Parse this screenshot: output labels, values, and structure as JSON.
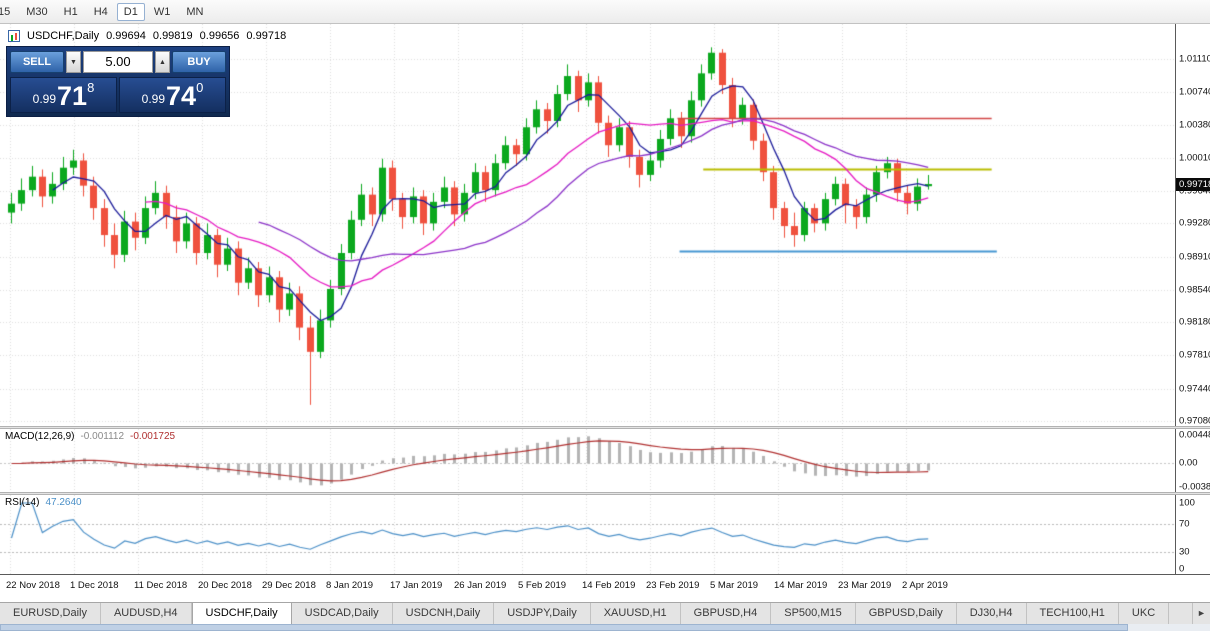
{
  "toolbar": {
    "buttons": [
      "15",
      "M30",
      "H1",
      "H4",
      "D1",
      "W1",
      "MN"
    ],
    "selected": "D1"
  },
  "icons": {
    "spinner_down": "▼",
    "spinner_up": "▲",
    "tab_scroll_right": "►"
  },
  "trade": {
    "sell_label": "SELL",
    "buy_label": "BUY",
    "volume": "5.00",
    "sell_price_small": "0.99",
    "sell_price_big": "71",
    "sell_price_sup": "8",
    "buy_price_small": "0.99",
    "buy_price_big": "74",
    "buy_price_sup": "0"
  },
  "tabbar": {
    "tabs": [
      "EURUSD,Daily",
      "AUDUSD,H4",
      "USDCHF,Daily",
      "USDCAD,Daily",
      "USDCNH,Daily",
      "USDJPY,Daily",
      "XAUUSD,H1",
      "GBPUSD,H4",
      "SP500,M15",
      "GBPUSD,Daily",
      "DJ30,H4",
      "TECH100,H1",
      "UKC"
    ],
    "active": "USDCHF,Daily"
  },
  "chart_data": {
    "type": "candlestick",
    "symbol_label": "USDCHF,Daily",
    "ohlc_text": {
      "open": "0.99694",
      "high": "0.99819",
      "low": "0.99656",
      "close": "0.99718"
    },
    "current_price_tag": "0.99718",
    "price_axis": {
      "top_price": 1.0111,
      "bottom_price": 0.9708,
      "labels": [
        "1.01110",
        "1.00740",
        "1.00380",
        "1.00010",
        "0.99640",
        "0.99280",
        "0.98910",
        "0.98540",
        "0.98180",
        "0.97810",
        "0.97440",
        "0.97080"
      ]
    },
    "x_axis": {
      "labels": [
        "22 Nov 2018",
        "1 Dec 2018",
        "11 Dec 2018",
        "20 Dec 2018",
        "29 Dec 2018",
        "8 Jan 2019",
        "17 Jan 2019",
        "26 Jan 2019",
        "5 Feb 2019",
        "14 Feb 2019",
        "23 Feb 2019",
        "5 Mar 2019",
        "14 Mar 2019",
        "23 Mar 2019",
        "2 Apr 2019"
      ]
    },
    "colors": {
      "up": "#0ba81e",
      "down": "#ef513e",
      "grid": "#dedede"
    },
    "candles": [
      [
        0.994,
        0.9962,
        0.9928,
        0.995
      ],
      [
        0.995,
        0.9978,
        0.9942,
        0.9965
      ],
      [
        0.9965,
        0.9992,
        0.9958,
        0.998
      ],
      [
        0.998,
        0.9988,
        0.9946,
        0.9958
      ],
      [
        0.9958,
        0.9985,
        0.995,
        0.9972
      ],
      [
        0.9972,
        1.0002,
        0.9965,
        0.999
      ],
      [
        0.999,
        1.001,
        0.9982,
        0.9998
      ],
      [
        0.9998,
        1.0006,
        0.9958,
        0.997
      ],
      [
        0.997,
        0.998,
        0.9932,
        0.9945
      ],
      [
        0.9945,
        0.9955,
        0.9902,
        0.9915
      ],
      [
        0.9915,
        0.9928,
        0.9878,
        0.9893
      ],
      [
        0.9893,
        0.9942,
        0.9885,
        0.993
      ],
      [
        0.993,
        0.994,
        0.9898,
        0.9912
      ],
      [
        0.9912,
        0.9958,
        0.9905,
        0.9945
      ],
      [
        0.9945,
        0.9975,
        0.9938,
        0.9962
      ],
      [
        0.9962,
        0.997,
        0.9922,
        0.9935
      ],
      [
        0.9935,
        0.9948,
        0.9895,
        0.9908
      ],
      [
        0.9908,
        0.994,
        0.99,
        0.9928
      ],
      [
        0.9928,
        0.9935,
        0.9882,
        0.9895
      ],
      [
        0.9895,
        0.9928,
        0.9888,
        0.9915
      ],
      [
        0.9915,
        0.9922,
        0.9868,
        0.9882
      ],
      [
        0.9882,
        0.9912,
        0.9875,
        0.99
      ],
      [
        0.99,
        0.9908,
        0.9848,
        0.9862
      ],
      [
        0.9862,
        0.989,
        0.9855,
        0.9878
      ],
      [
        0.9878,
        0.9885,
        0.9835,
        0.9848
      ],
      [
        0.9848,
        0.988,
        0.984,
        0.9868
      ],
      [
        0.9868,
        0.9875,
        0.9818,
        0.9832
      ],
      [
        0.9832,
        0.9862,
        0.9825,
        0.985
      ],
      [
        0.985,
        0.9858,
        0.9798,
        0.9812
      ],
      [
        0.9812,
        0.9825,
        0.9726,
        0.9785
      ],
      [
        0.9785,
        0.9832,
        0.9778,
        0.982
      ],
      [
        0.982,
        0.9865,
        0.9812,
        0.9855
      ],
      [
        0.9855,
        0.9905,
        0.9848,
        0.9895
      ],
      [
        0.9895,
        0.9942,
        0.9888,
        0.9932
      ],
      [
        0.9932,
        0.9972,
        0.9925,
        0.996
      ],
      [
        0.996,
        0.9968,
        0.9925,
        0.9938
      ],
      [
        0.9938,
        1.0,
        0.993,
        0.999
      ],
      [
        0.999,
        0.9998,
        0.9942,
        0.9955
      ],
      [
        0.9955,
        0.9962,
        0.9922,
        0.9935
      ],
      [
        0.9935,
        0.9968,
        0.9928,
        0.9958
      ],
      [
        0.9958,
        0.9965,
        0.9915,
        0.9928
      ],
      [
        0.9928,
        0.9962,
        0.992,
        0.9952
      ],
      [
        0.9952,
        0.998,
        0.9945,
        0.9968
      ],
      [
        0.9968,
        0.9975,
        0.9925,
        0.9938
      ],
      [
        0.9938,
        0.9972,
        0.993,
        0.9962
      ],
      [
        0.9962,
        0.9995,
        0.9955,
        0.9985
      ],
      [
        0.9985,
        0.9992,
        0.9952,
        0.9965
      ],
      [
        0.9965,
        1.0005,
        0.9958,
        0.9995
      ],
      [
        0.9995,
        1.0025,
        0.9988,
        1.0015
      ],
      [
        1.0015,
        1.0022,
        0.9992,
        1.0005
      ],
      [
        1.0005,
        1.0045,
        0.9998,
        1.0035
      ],
      [
        1.0035,
        1.0065,
        1.0028,
        1.0055
      ],
      [
        1.0055,
        1.0062,
        1.0028,
        1.0042
      ],
      [
        1.0042,
        1.0082,
        1.0035,
        1.0072
      ],
      [
        1.0072,
        1.0105,
        1.0065,
        1.0092
      ],
      [
        1.0092,
        1.0098,
        1.0052,
        1.0065
      ],
      [
        1.0065,
        1.0095,
        1.0058,
        1.0085
      ],
      [
        1.0085,
        1.0092,
        1.0028,
        1.004
      ],
      [
        1.004,
        1.0048,
        1.0002,
        1.0015
      ],
      [
        1.0015,
        1.0045,
        1.0008,
        1.0035
      ],
      [
        1.0035,
        1.0042,
        0.999,
        1.0002
      ],
      [
        1.0002,
        1.001,
        0.9968,
        0.9982
      ],
      [
        0.9982,
        1.0008,
        0.9975,
        0.9998
      ],
      [
        0.9998,
        1.0032,
        0.999,
        1.0022
      ],
      [
        1.0022,
        1.0055,
        1.0015,
        1.0045
      ],
      [
        1.0045,
        1.0052,
        1.0012,
        1.0025
      ],
      [
        1.0025,
        1.0075,
        1.0018,
        1.0065
      ],
      [
        1.0065,
        1.0105,
        1.0058,
        1.0095
      ],
      [
        1.0095,
        1.0124,
        1.0088,
        1.0118
      ],
      [
        1.0118,
        1.0122,
        1.0072,
        1.0082
      ],
      [
        1.0082,
        1.009,
        1.0035,
        1.0045
      ],
      [
        1.0045,
        1.0068,
        1.0038,
        1.006
      ],
      [
        1.006,
        1.0066,
        1.001,
        1.002
      ],
      [
        1.002,
        1.0028,
        0.9975,
        0.9985
      ],
      [
        0.9985,
        0.9992,
        0.9932,
        0.9945
      ],
      [
        0.9945,
        0.9952,
        0.9912,
        0.9925
      ],
      [
        0.9925,
        0.994,
        0.9902,
        0.9915
      ],
      [
        0.9915,
        0.9952,
        0.9908,
        0.9945
      ],
      [
        0.9945,
        0.995,
        0.9918,
        0.9928
      ],
      [
        0.9928,
        0.9962,
        0.992,
        0.9955
      ],
      [
        0.9955,
        0.998,
        0.9948,
        0.9972
      ],
      [
        0.9972,
        0.9978,
        0.9928,
        0.9948
      ],
      [
        0.9948,
        0.9955,
        0.9922,
        0.9935
      ],
      [
        0.9935,
        0.9968,
        0.9928,
        0.996
      ],
      [
        0.996,
        0.9992,
        0.9952,
        0.9985
      ],
      [
        0.9985,
        1.0002,
        0.9978,
        0.9995
      ],
      [
        0.9995,
        1.0,
        0.9952,
        0.9962
      ],
      [
        0.9962,
        0.997,
        0.9938,
        0.995
      ],
      [
        0.995,
        0.9978,
        0.9942,
        0.9969
      ],
      [
        0.99694,
        0.99819,
        0.99656,
        0.99718
      ]
    ],
    "moving_averages": [
      {
        "period": 5,
        "color": "#1a1a99"
      },
      {
        "period": 14,
        "color": "#e519c3"
      },
      {
        "period": 25,
        "color": "#8b32c8"
      }
    ],
    "hlines": [
      {
        "price": 1.0045,
        "color": "#d24545",
        "from": 65,
        "to": 95.5,
        "width": 1.4
      },
      {
        "price": 0.9988,
        "color": "#b9bd00",
        "from": 67.5,
        "to": 95.5,
        "width": 2
      },
      {
        "price": 0.9897,
        "color": "#4596d2",
        "from": 65.2,
        "to": 96,
        "width": 2
      }
    ],
    "macd": {
      "label": "MACD(12,26,9)",
      "value_main": "-0.001112",
      "value_signal": "-0.001725",
      "params": [
        12,
        26,
        9
      ],
      "axis_labels": [
        "0.004487",
        "0.00",
        "-0.003883"
      ],
      "histogram_color": "#b4b4b4",
      "signal_color": "#b03030"
    },
    "rsi": {
      "label": "RSI(14)",
      "value": "47.2640",
      "period": 14,
      "axis_labels": [
        "100",
        "70",
        "30",
        "0"
      ],
      "levels": [
        70,
        30
      ],
      "color": "#4a8fc7"
    }
  }
}
